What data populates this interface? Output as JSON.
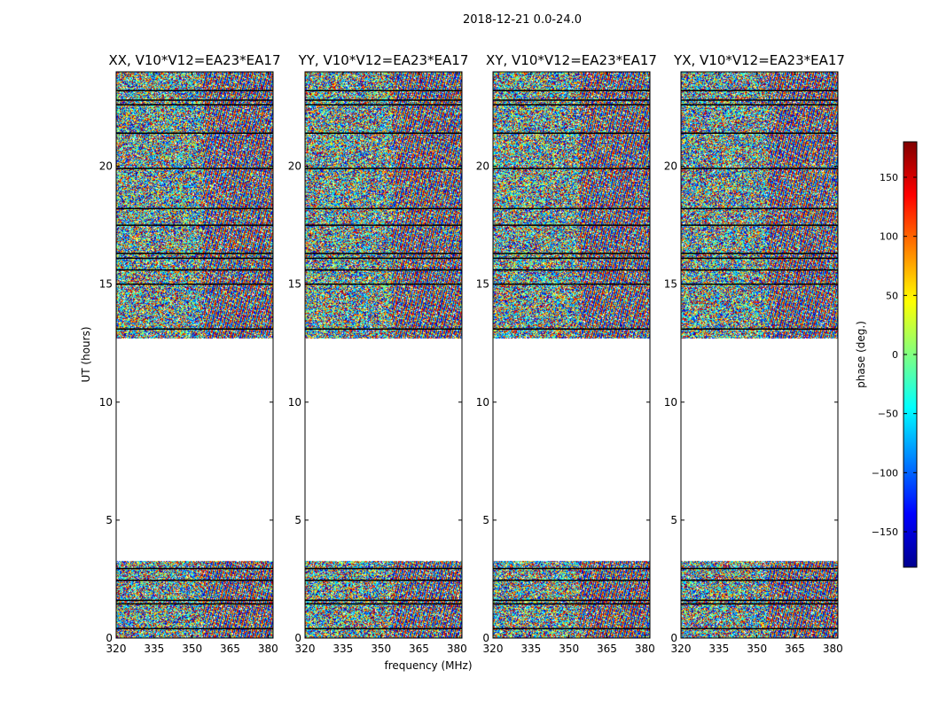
{
  "figure_title": "2018-12-21 0.0-24.0",
  "colormap": [
    "#00008f",
    "#0000ff",
    "#0080ff",
    "#00ffff",
    "#80ff80",
    "#ffff00",
    "#ff8000",
    "#ff0000",
    "#800000"
  ],
  "chart_data": {
    "type": "heatmap",
    "title": "2018-12-21 0.0-24.0",
    "xlabel": "frequency (MHz)",
    "ylabel": "UT (hours)",
    "xlim": [
      320,
      382
    ],
    "ylim": [
      0,
      24
    ],
    "xticks": [
      320,
      335,
      350,
      365,
      380
    ],
    "yticks": [
      0,
      5,
      10,
      15,
      20
    ],
    "panels": [
      {
        "title": "XX, V10*V12=EA23*EA17"
      },
      {
        "title": "YY, V10*V12=EA23*EA17"
      },
      {
        "title": "XY, V10*V12=EA23*EA17"
      },
      {
        "title": "YX, V10*V12=EA23*EA17"
      }
    ],
    "data_time_ranges": [
      [
        0,
        3.3
      ],
      [
        12.7,
        24
      ]
    ],
    "flag_lines": [
      0.4,
      1.45,
      1.6,
      2.45,
      2.95,
      13.1,
      15.0,
      15.6,
      16.1,
      16.3,
      17.5,
      18.2,
      19.9,
      21.4,
      22.6,
      22.8,
      23.2
    ],
    "colorbar": {
      "label": "phase (deg.)",
      "range": [
        -180,
        180
      ],
      "ticks": [
        150,
        100,
        50,
        0,
        -50,
        -100,
        -150
      ],
      "tick_labels": [
        "150",
        "100",
        "50",
        "0",
        "−50",
        "−100",
        "−150"
      ]
    }
  }
}
